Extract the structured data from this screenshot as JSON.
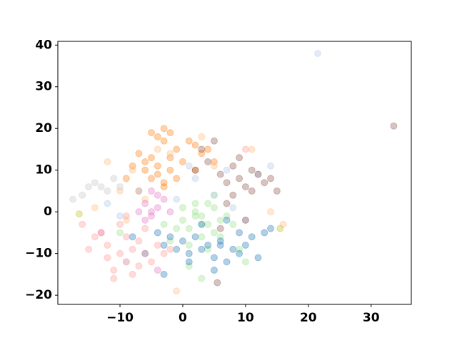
{
  "chart_data": {
    "type": "scatter",
    "xlim": [
      -19.9,
      36.4
    ],
    "ylim": [
      -22.2,
      40.9
    ],
    "xticks": [
      {
        "value": -10,
        "label": "−10"
      },
      0,
      10,
      20,
      30
    ],
    "yticks": [
      {
        "value": -20,
        "label": "−20"
      },
      {
        "value": -10,
        "label": "−10"
      },
      0,
      10,
      20,
      30,
      40
    ],
    "series": [
      {
        "color": "#ff7f0e",
        "x": [
          -5,
          -4,
          -3,
          -2,
          -6,
          -7,
          -4,
          -3,
          -1,
          1,
          2,
          3,
          -5,
          -8,
          -9,
          -2,
          0,
          4,
          -4,
          -6,
          -3,
          -1,
          2,
          -7,
          -5,
          -3,
          -2,
          5
        ],
        "values": [
          8,
          9,
          7,
          10,
          12,
          14,
          18,
          17,
          15,
          17,
          16,
          14,
          19,
          11,
          8,
          13,
          12,
          15,
          11,
          10,
          6,
          8,
          10,
          5,
          13,
          20,
          19,
          12
        ]
      },
      {
        "color": "#ffbb78",
        "x": [
          -12,
          -10,
          -8,
          -4,
          -2,
          3,
          5,
          -6,
          -14,
          -9,
          14,
          16,
          11,
          -1
        ],
        "values": [
          12,
          5,
          10,
          15,
          14,
          18,
          11,
          3,
          1,
          -2,
          0,
          -3,
          15,
          -19
        ]
      },
      {
        "color": "#98df8a",
        "x": [
          0,
          1,
          2,
          3,
          4,
          5,
          6,
          2,
          3,
          1,
          -1,
          4,
          5,
          7,
          8,
          3,
          2,
          0,
          6,
          4,
          -3,
          -2,
          9,
          10,
          -10,
          3,
          1,
          5
        ],
        "values": [
          -2,
          -4,
          0,
          -1,
          -3,
          -5,
          -2,
          2,
          -6,
          -8,
          -4,
          2,
          1,
          -1,
          -3,
          -3,
          -1,
          1,
          -6,
          -9,
          -3,
          -7,
          -9,
          -12,
          -5,
          -16,
          -13,
          4
        ]
      },
      {
        "color": "#1f77b4",
        "x": [
          -4,
          -3,
          -2,
          -1,
          0,
          1,
          2,
          3,
          4,
          5,
          6,
          7,
          8,
          9,
          10,
          11,
          12,
          13,
          -8,
          -6,
          5,
          14,
          3,
          7,
          9,
          -3,
          1,
          6
        ],
        "values": [
          -5,
          -8,
          -6,
          -9,
          -7,
          -10,
          -6,
          -9,
          -8,
          -11,
          -7,
          -12,
          -9,
          -10,
          -8,
          -6,
          -11,
          -5,
          -6,
          -10,
          -14,
          -4,
          -3,
          -2,
          -5,
          -15,
          -12,
          -8
        ]
      },
      {
        "color": "#aec7e8",
        "x": [
          -10,
          -12,
          -7,
          2,
          5,
          8,
          10,
          12,
          14,
          -9,
          21.5,
          1,
          -1,
          7
        ],
        "values": [
          -1,
          2,
          5,
          8,
          4,
          1,
          -2,
          9,
          11,
          -12,
          38,
          11,
          3,
          10
        ]
      },
      {
        "color": "#8c564b",
        "x": [
          2,
          4,
          6,
          7,
          8,
          9,
          10,
          11,
          12,
          13,
          8,
          5,
          3,
          7,
          9,
          11,
          6,
          10,
          14,
          15,
          33.6,
          5.5
        ],
        "values": [
          10,
          12,
          9,
          7,
          11,
          8,
          6,
          10,
          9,
          7,
          4,
          17,
          15,
          2,
          13,
          5,
          -4,
          -2,
          8,
          5,
          20.6,
          -17
        ]
      },
      {
        "color": "#e377c2",
        "x": [
          -6,
          -5,
          -4,
          -3,
          -5,
          -7,
          -4,
          -6,
          -2,
          -5,
          -13,
          -4
        ],
        "values": [
          2,
          0,
          1,
          3,
          -1,
          0,
          4,
          -2,
          0,
          5,
          -5,
          -14
        ]
      },
      {
        "color": "#ff9896",
        "x": [
          -14,
          -12,
          -10,
          -9,
          -8,
          -7,
          -6,
          -11,
          -13,
          -15,
          -10,
          -8,
          -5,
          -3,
          -9,
          -12,
          -7,
          -4,
          -16,
          -11,
          -6,
          -9,
          -2,
          10
        ],
        "values": [
          -6,
          -8,
          -10,
          -12,
          -9,
          -7,
          -10,
          -14,
          -5,
          -9,
          -3,
          -15,
          -12,
          -10,
          -6,
          -11,
          -13,
          -8,
          -3,
          -16,
          -4,
          -1,
          -9,
          15
        ]
      },
      {
        "color": "#c7c7c7",
        "x": [
          -17.5,
          -15,
          -14,
          -13,
          -12,
          -11,
          -10,
          -16
        ],
        "values": [
          3,
          6,
          7,
          6,
          5,
          8,
          6,
          4
        ]
      },
      {
        "color": "#bcbd22",
        "x": [
          -16.5,
          15.5
        ],
        "values": [
          -0.5,
          -4
        ]
      }
    ]
  }
}
